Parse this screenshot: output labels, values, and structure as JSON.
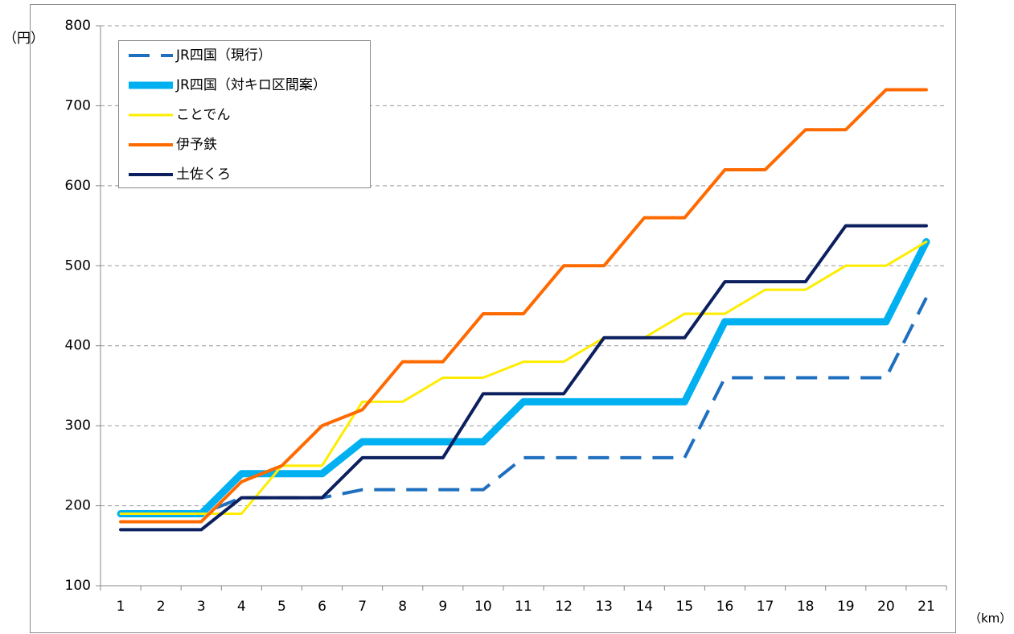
{
  "chart_data": {
    "type": "line",
    "y_unit": "（円）",
    "x_unit": "（km）",
    "categories": [
      1,
      2,
      3,
      4,
      5,
      6,
      7,
      8,
      9,
      10,
      11,
      12,
      13,
      14,
      15,
      16,
      17,
      18,
      19,
      20,
      21
    ],
    "series": [
      {
        "name": "JR四国（現行）",
        "color": "#1f6fbf",
        "dashed": true,
        "width": 4,
        "values": [
          190,
          190,
          190,
          210,
          210,
          210,
          220,
          220,
          220,
          220,
          260,
          260,
          260,
          260,
          260,
          360,
          360,
          360,
          360,
          360,
          460
        ]
      },
      {
        "name": "JR四国（対キロ区間案）",
        "color": "#00b0f0",
        "dashed": false,
        "width": 9,
        "values": [
          190,
          190,
          190,
          240,
          240,
          240,
          280,
          280,
          280,
          280,
          330,
          330,
          330,
          330,
          330,
          430,
          430,
          430,
          430,
          430,
          530
        ]
      },
      {
        "name": "ことでん",
        "color": "#ffec00",
        "dashed": false,
        "width": 3,
        "values": [
          190,
          190,
          190,
          190,
          250,
          250,
          330,
          330,
          360,
          360,
          380,
          380,
          410,
          410,
          440,
          440,
          470,
          470,
          500,
          500,
          530
        ]
      },
      {
        "name": "伊予鉄",
        "color": "#ff6a00",
        "dashed": false,
        "width": 4,
        "values": [
          180,
          180,
          180,
          230,
          250,
          300,
          320,
          380,
          380,
          440,
          440,
          500,
          500,
          560,
          560,
          620,
          620,
          670,
          670,
          720,
          720
        ]
      },
      {
        "name": "土佐くろ",
        "color": "#0c1f5e",
        "dashed": false,
        "width": 4,
        "values": [
          170,
          170,
          170,
          210,
          210,
          210,
          260,
          260,
          260,
          340,
          340,
          340,
          410,
          410,
          410,
          480,
          480,
          480,
          550,
          550,
          550
        ]
      }
    ],
    "ylim": [
      100,
      800
    ],
    "yticks": [
      100,
      200,
      300,
      400,
      500,
      600,
      700,
      800
    ],
    "grid": true,
    "legend": "top-left"
  }
}
